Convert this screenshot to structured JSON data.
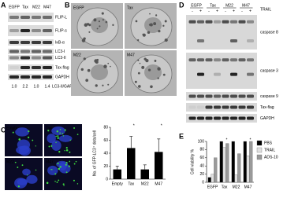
{
  "panel_a": {
    "label": "A",
    "lanes": [
      "EGFP",
      "Tax",
      "M22",
      "M47"
    ],
    "blots": [
      "FLIP-L",
      "FLIP-s",
      "IκB-α",
      "LC3-I",
      "LC3-II",
      "Tax-flag",
      "GAPDH"
    ],
    "ratios": [
      "1.0",
      "2.2",
      "1.0",
      "1.4"
    ],
    "ratio_label": "LC3-II/GAPDH"
  },
  "panel_b": {
    "label": "B",
    "images": [
      "EGFP",
      "Tax",
      "M22",
      "M47"
    ]
  },
  "panel_c": {
    "label": "C",
    "images": [
      "Empty",
      "Tax",
      "M22",
      "M47"
    ]
  },
  "panel_d": {
    "label": "D",
    "groups": [
      "EGFP",
      "Tax",
      "M22",
      "M47"
    ],
    "treatment": "TRAIL",
    "signs": [
      "-",
      "+",
      "-",
      "+",
      "-",
      "+",
      "-",
      "+"
    ],
    "blots": [
      "caspase 8",
      "caspase 3",
      "caspase 9",
      "Tax-flag",
      "GAPDH"
    ]
  },
  "panel_e": {
    "label": "E"
  },
  "chart_data": [
    {
      "type": "bar",
      "y_label": "No. of GFP-LC3⁺ dots/cell",
      "categories": [
        "Empty",
        "Tax",
        "M22",
        "M47"
      ],
      "values": [
        15,
        48,
        15,
        42
      ],
      "errors": [
        5,
        18,
        7,
        20
      ],
      "color": "#000000",
      "ylim": [
        0,
        80
      ],
      "yticks": [
        0,
        20,
        40,
        60,
        80
      ],
      "annotations": [
        {
          "category": "Tax",
          "text": "*"
        },
        {
          "category": "M47",
          "text": "*"
        }
      ]
    },
    {
      "type": "grouped_bar",
      "y_label": "Cell viability %",
      "categories": [
        "EGFP",
        "Tax",
        "M22",
        "M47"
      ],
      "series": [
        {
          "name": "PBS",
          "color": "#000000",
          "values": [
            12,
            100,
            100,
            100
          ]
        },
        {
          "name": "TRAIL",
          "color": "#e0e0e0",
          "values": [
            20,
            85,
            18,
            65
          ]
        },
        {
          "name": "ADS-10",
          "color": "#9a9a9a",
          "values": [
            60,
            95,
            70,
            100
          ]
        }
      ],
      "ylim": [
        0,
        100
      ],
      "yticks": [
        0,
        20,
        40,
        60,
        80,
        100
      ],
      "legend": "right",
      "annotations": [
        {
          "category": "Tax",
          "text": "*"
        },
        {
          "category": "M47",
          "text": "*"
        }
      ]
    }
  ]
}
